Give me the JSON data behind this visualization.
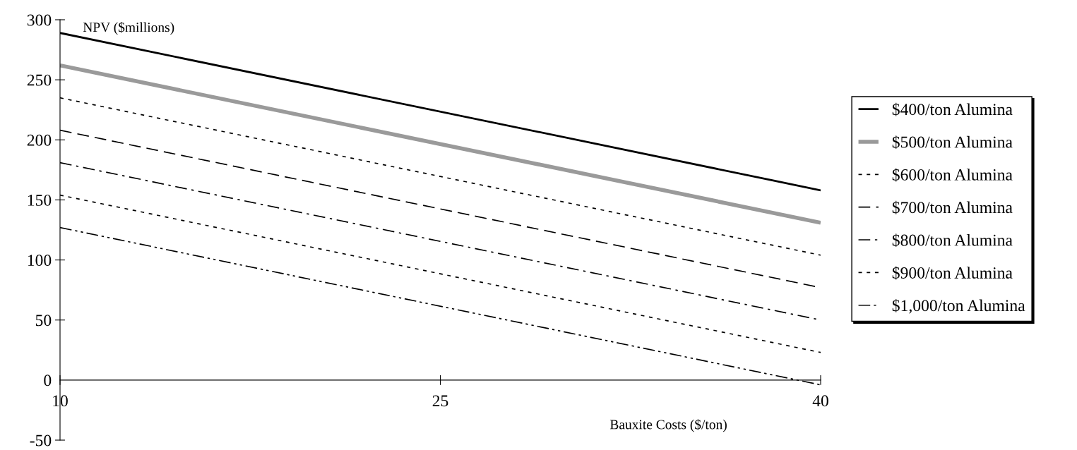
{
  "chart_data": {
    "type": "line",
    "xlabel": "Bauxite Costs ($/ton)",
    "ylabel": "NPV ($millions)",
    "x": [
      10,
      40
    ],
    "xlim": [
      10,
      40
    ],
    "xticks": [
      10,
      25,
      40
    ],
    "ylim": [
      -50,
      300
    ],
    "yticks": [
      -50,
      0,
      50,
      100,
      150,
      200,
      250,
      300
    ],
    "grid": false,
    "legend": "right",
    "marker": "none",
    "series": [
      {
        "name": "$400/ton Alumina",
        "color": "#000000",
        "values": [
          289,
          158
        ],
        "line_style": "solid"
      },
      {
        "name": "$500/ton Alumina",
        "color": "#9a9a9a",
        "values": [
          262,
          131
        ],
        "line_style": "solid"
      },
      {
        "name": "$600/ton Alumina",
        "color": "#000000",
        "values": [
          235,
          104
        ],
        "line_style": "dotted"
      },
      {
        "name": "$700/ton Alumina",
        "color": "#000000",
        "values": [
          208,
          77
        ],
        "line_style": "dashed"
      },
      {
        "name": "$800/ton Alumina",
        "color": "#000000",
        "values": [
          181,
          50
        ],
        "line_style": "dashdot"
      },
      {
        "name": "$900/ton Alumina",
        "color": "#000000",
        "values": [
          154,
          23
        ],
        "line_style": "dotted"
      },
      {
        "name": "$1,000/ton Alumina",
        "color": "#000000",
        "values": [
          127,
          -4
        ],
        "line_style": "dashdotdot"
      }
    ]
  }
}
